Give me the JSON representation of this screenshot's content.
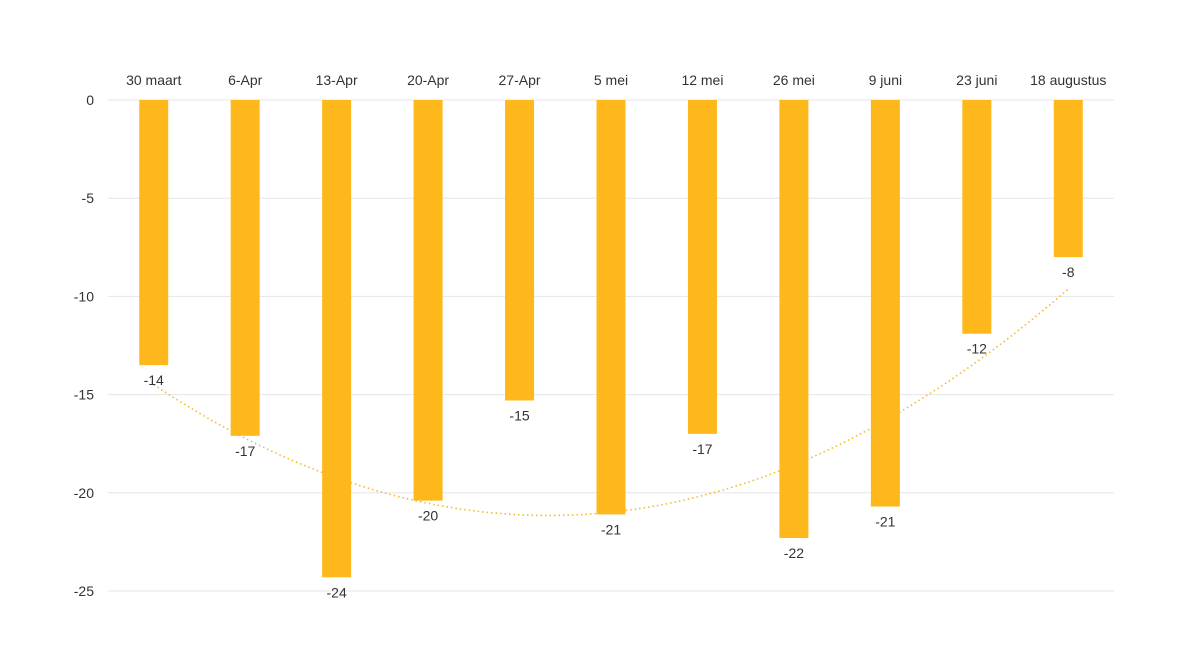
{
  "chart_data": {
    "type": "bar",
    "categories": [
      "30 maart",
      "6-Apr",
      "13-Apr",
      "20-Apr",
      "27-Apr",
      "5 mei",
      "12 mei",
      "26 mei",
      "9 juni",
      "23 juni",
      "18 augustus"
    ],
    "values": [
      -13.5,
      -17.1,
      -24.3,
      -20.4,
      -15.3,
      -21.1,
      -17.0,
      -22.3,
      -20.7,
      -11.9,
      -8.0
    ],
    "data_labels": [
      "-14",
      "-17",
      "-24",
      "-20",
      "-15",
      "-21",
      "-17",
      "-22",
      "-21",
      "-12",
      "-8"
    ],
    "trendline": {
      "type": "polynomial",
      "order": 2,
      "style": "dotted"
    },
    "title": "",
    "xlabel": "",
    "ylabel": "",
    "ylim": [
      -25,
      0
    ],
    "yticks": [
      0,
      -5,
      -10,
      -15,
      -20,
      -25
    ],
    "ytick_labels": [
      "0",
      "-5",
      "-10",
      "-15",
      "-20",
      "-25"
    ],
    "x_axis_position": "top",
    "grid": true,
    "legend": "none",
    "colors": {
      "bar": "#FFB81C",
      "trend": "#F5B92E",
      "grid": "#E6E6E6",
      "text": "#333333"
    }
  }
}
